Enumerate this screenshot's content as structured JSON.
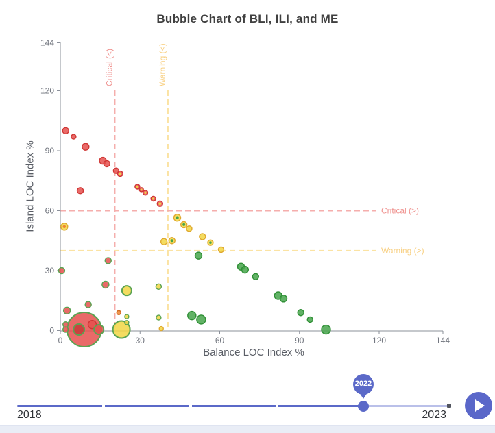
{
  "chart_data": {
    "type": "scatter",
    "title": "Bubble Chart of BLI, ILI, and ME",
    "xlabel": "Balance LOC Index %",
    "ylabel": "Island LOC Index %",
    "xlim": [
      0,
      144
    ],
    "ylim": [
      0,
      144
    ],
    "xticks": [
      0,
      30,
      60,
      90,
      120,
      144
    ],
    "yticks": [
      0,
      30,
      60,
      90,
      120,
      144
    ],
    "grid": false,
    "thresholds": [
      {
        "axis": "x",
        "value": 20.5,
        "label": "Critical (<)",
        "line_color": "#f5aeac",
        "label_color": "#ef928f"
      },
      {
        "axis": "x",
        "value": 40.5,
        "label": "Warning (<)",
        "line_color": "#fbe3a3",
        "label_color": "#f8d083"
      },
      {
        "axis": "y",
        "value": 60,
        "label": "Critical (>)",
        "line_color": "#f5aeac",
        "label_color": "#ef928f"
      },
      {
        "axis": "y",
        "value": 40,
        "label": "Warning (>)",
        "line_color": "#fbe3a3",
        "label_color": "#f8d083"
      }
    ],
    "palette": {
      "red": "#e5504e",
      "darkred": "#c63b38",
      "yellow": "#f2d644",
      "green": "#47a44b",
      "orange": "#ef8532",
      "stroke_red": "#cf3634",
      "stroke_yellow": "#dfa92e",
      "stroke_green_default": "#2f8f35",
      "stroke_green_ring": "#5aa352"
    },
    "bubbles": [
      {
        "x": 9,
        "y": 0.5,
        "r": 25,
        "color": "red",
        "stroke": "green"
      },
      {
        "x": 7,
        "y": 0.5,
        "r": 8,
        "color": "darkred",
        "stroke": "green"
      },
      {
        "x": 12,
        "y": 3,
        "r": 6,
        "color": "red"
      },
      {
        "x": 14.5,
        "y": 0.5,
        "r": 7,
        "color": "red",
        "stroke": "green"
      },
      {
        "x": 2,
        "y": 3,
        "r": 4,
        "color": "red",
        "stroke": "green"
      },
      {
        "x": 2,
        "y": 0.5,
        "r": 4,
        "color": "red",
        "stroke": "green"
      },
      {
        "x": 23,
        "y": 0.5,
        "r": 12.5,
        "color": "yellow",
        "stroke": "green"
      },
      {
        "x": 2,
        "y": 100,
        "r": 4.5,
        "color": "red"
      },
      {
        "x": 5,
        "y": 97,
        "r": 3.5,
        "color": "red"
      },
      {
        "x": 9.5,
        "y": 92,
        "r": 5,
        "color": "red"
      },
      {
        "x": 16,
        "y": 85,
        "r": 5,
        "color": "red"
      },
      {
        "x": 17.5,
        "y": 83.5,
        "r": 4.5,
        "color": "red"
      },
      {
        "x": 21,
        "y": 80,
        "r": 4,
        "color": "red"
      },
      {
        "x": 22.5,
        "y": 78.5,
        "r": 4,
        "color": "red",
        "center": "yellow"
      },
      {
        "x": 7.5,
        "y": 70,
        "r": 4.5,
        "color": "red"
      },
      {
        "x": 29,
        "y": 72,
        "r": 3.5,
        "color": "red",
        "center": "yellow"
      },
      {
        "x": 30.5,
        "y": 70.5,
        "r": 3,
        "color": "red",
        "center": "yellow"
      },
      {
        "x": 32,
        "y": 69,
        "r": 3.5,
        "color": "red",
        "center": "yellow"
      },
      {
        "x": 35,
        "y": 66,
        "r": 3.5,
        "color": "red",
        "center": "yellow"
      },
      {
        "x": 37.5,
        "y": 63.5,
        "r": 4,
        "color": "red",
        "center": "yellow"
      },
      {
        "x": 44,
        "y": 56.5,
        "r": 5,
        "color": "yellow",
        "center": "green"
      },
      {
        "x": 46.5,
        "y": 53,
        "r": 4.5,
        "color": "yellow",
        "center": "green"
      },
      {
        "x": 48.5,
        "y": 51,
        "r": 4,
        "color": "yellow"
      },
      {
        "x": 53.5,
        "y": 47,
        "r": 4.5,
        "color": "yellow"
      },
      {
        "x": 56.5,
        "y": 44,
        "r": 4,
        "color": "yellow",
        "center": "green"
      },
      {
        "x": 60.5,
        "y": 40.5,
        "r": 4,
        "color": "yellow"
      },
      {
        "x": 39,
        "y": 44.5,
        "r": 4.5,
        "color": "yellow"
      },
      {
        "x": 42,
        "y": 45,
        "r": 4.5,
        "color": "yellow",
        "center": "green"
      },
      {
        "x": 52,
        "y": 37.5,
        "r": 5,
        "color": "green"
      },
      {
        "x": 68,
        "y": 32,
        "r": 5,
        "color": "green"
      },
      {
        "x": 69.5,
        "y": 30.5,
        "r": 5,
        "color": "green"
      },
      {
        "x": 73.5,
        "y": 27,
        "r": 4.5,
        "color": "green"
      },
      {
        "x": 82,
        "y": 17.5,
        "r": 5.5,
        "color": "green"
      },
      {
        "x": 84,
        "y": 16,
        "r": 5,
        "color": "green"
      },
      {
        "x": 90.5,
        "y": 9,
        "r": 4.5,
        "color": "green"
      },
      {
        "x": 94,
        "y": 5.5,
        "r": 4,
        "color": "green"
      },
      {
        "x": 100,
        "y": 0.5,
        "r": 6.5,
        "color": "green"
      },
      {
        "x": 49.5,
        "y": 7.5,
        "r": 6,
        "color": "green"
      },
      {
        "x": 53,
        "y": 5.5,
        "r": 6.5,
        "color": "green"
      },
      {
        "x": 1.5,
        "y": 52,
        "r": 5,
        "color": "yellow",
        "center": "orange"
      },
      {
        "x": 0.5,
        "y": 30,
        "r": 4.5,
        "color": "red",
        "stroke": "green"
      },
      {
        "x": 18,
        "y": 35,
        "r": 4.5,
        "color": "red",
        "stroke": "green"
      },
      {
        "x": 17,
        "y": 23,
        "r": 5,
        "color": "red",
        "stroke": "green"
      },
      {
        "x": 25,
        "y": 20,
        "r": 7,
        "color": "yellow",
        "stroke": "green"
      },
      {
        "x": 37,
        "y": 22,
        "r": 4,
        "color": "yellow",
        "stroke": "green"
      },
      {
        "x": 10.5,
        "y": 13,
        "r": 4.5,
        "color": "red",
        "stroke": "green"
      },
      {
        "x": 2.5,
        "y": 10,
        "r": 5,
        "color": "red",
        "stroke": "green"
      },
      {
        "x": 22,
        "y": 9,
        "r": 3,
        "color": "orange"
      },
      {
        "x": 25,
        "y": 7,
        "r": 3,
        "color": "yellow",
        "stroke": "green"
      },
      {
        "x": 25,
        "y": 4,
        "r": 3,
        "color": "yellow",
        "stroke": "green"
      },
      {
        "x": 37,
        "y": 6.5,
        "r": 3.5,
        "color": "yellow",
        "stroke": "green"
      },
      {
        "x": 38,
        "y": 1,
        "r": 3,
        "color": "yellow"
      }
    ]
  },
  "timeline": {
    "start_label": "2018",
    "end_label": "2023",
    "current_year": "2022"
  }
}
